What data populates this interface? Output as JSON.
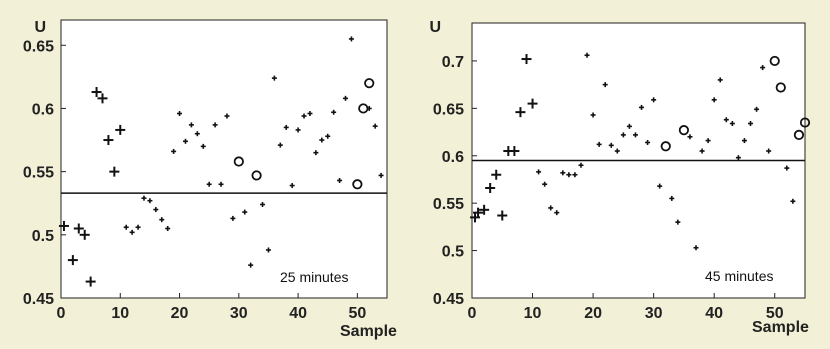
{
  "chart_data": [
    {
      "type": "scatter",
      "ylabel": "U",
      "xlabel": "Sample",
      "annotation": "25 minutes",
      "xlim": [
        0,
        55
      ],
      "ylim": [
        0.45,
        0.67
      ],
      "xticks": [
        0,
        10,
        20,
        30,
        40,
        50
      ],
      "xtick_labels": [
        "0",
        "10",
        "20",
        "30",
        "40",
        "50"
      ],
      "yticks": [
        0.45,
        0.5,
        0.55,
        0.6,
        0.65
      ],
      "ytick_labels": [
        "0.45",
        "0.5",
        "0.55",
        "0.6",
        "0.65"
      ],
      "reference_line": 0.533,
      "series": [
        {
          "marker": "plus",
          "points": [
            [
              0.5,
              0.507
            ],
            [
              2,
              0.48
            ],
            [
              3,
              0.505
            ],
            [
              4,
              0.5
            ],
            [
              5,
              0.463
            ],
            [
              6,
              0.613
            ],
            [
              7,
              0.608
            ],
            [
              8,
              0.575
            ],
            [
              9,
              0.55
            ],
            [
              10,
              0.583
            ]
          ]
        },
        {
          "marker": "dot",
          "points": [
            [
              11,
              0.506
            ],
            [
              12,
              0.502
            ],
            [
              13,
              0.506
            ],
            [
              14,
              0.529
            ],
            [
              15,
              0.527
            ],
            [
              16,
              0.52
            ],
            [
              17,
              0.512
            ],
            [
              18,
              0.505
            ],
            [
              19,
              0.566
            ],
            [
              20,
              0.596
            ],
            [
              21,
              0.574
            ],
            [
              22,
              0.587
            ],
            [
              23,
              0.58
            ],
            [
              24,
              0.57
            ],
            [
              25,
              0.54
            ],
            [
              26,
              0.587
            ],
            [
              27,
              0.54
            ],
            [
              28,
              0.594
            ],
            [
              29,
              0.513
            ],
            [
              31,
              0.518
            ],
            [
              32,
              0.476
            ],
            [
              34,
              0.524
            ],
            [
              35,
              0.488
            ],
            [
              36,
              0.624
            ],
            [
              37,
              0.571
            ],
            [
              38,
              0.585
            ],
            [
              39,
              0.539
            ],
            [
              40,
              0.583
            ],
            [
              41,
              0.594
            ],
            [
              42,
              0.596
            ],
            [
              43,
              0.565
            ],
            [
              44,
              0.575
            ],
            [
              45,
              0.578
            ],
            [
              46,
              0.597
            ],
            [
              47,
              0.543
            ],
            [
              48,
              0.608
            ],
            [
              49,
              0.655
            ],
            [
              52,
              0.6
            ],
            [
              53,
              0.586
            ],
            [
              54,
              0.547
            ]
          ]
        },
        {
          "marker": "circle",
          "points": [
            [
              30,
              0.558
            ],
            [
              33,
              0.547
            ],
            [
              50,
              0.54
            ],
            [
              51,
              0.6
            ],
            [
              52,
              0.62
            ]
          ]
        }
      ]
    },
    {
      "type": "scatter",
      "ylabel": "U",
      "xlabel": "Sample",
      "annotation": "45 minutes",
      "xlim": [
        0,
        55
      ],
      "ylim": [
        0.45,
        0.74
      ],
      "xticks": [
        0,
        10,
        20,
        30,
        40,
        50
      ],
      "xtick_labels": [
        "0",
        "10",
        "20",
        "30",
        "40",
        "50"
      ],
      "yticks": [
        0.45,
        0.5,
        0.55,
        0.6,
        0.65,
        0.7
      ],
      "ytick_labels": [
        "0.45",
        "0.5",
        "0.55",
        "0.6",
        "0.65",
        "0.7"
      ],
      "reference_line": 0.595,
      "series": [
        {
          "marker": "plus",
          "points": [
            [
              0.5,
              0.535
            ],
            [
              1,
              0.54
            ],
            [
              2,
              0.543
            ],
            [
              3,
              0.566
            ],
            [
              4,
              0.58
            ],
            [
              5,
              0.537
            ],
            [
              6,
              0.605
            ],
            [
              7,
              0.605
            ],
            [
              8,
              0.646
            ],
            [
              9,
              0.702
            ],
            [
              10,
              0.655
            ]
          ]
        },
        {
          "marker": "dot",
          "points": [
            [
              11,
              0.583
            ],
            [
              12,
              0.57
            ],
            [
              13,
              0.545
            ],
            [
              14,
              0.54
            ],
            [
              15,
              0.582
            ],
            [
              16,
              0.58
            ],
            [
              17,
              0.58
            ],
            [
              18,
              0.59
            ],
            [
              19,
              0.706
            ],
            [
              20,
              0.643
            ],
            [
              21,
              0.612
            ],
            [
              22,
              0.675
            ],
            [
              23,
              0.611
            ],
            [
              24,
              0.605
            ],
            [
              25,
              0.622
            ],
            [
              26,
              0.631
            ],
            [
              27,
              0.622
            ],
            [
              28,
              0.651
            ],
            [
              29,
              0.614
            ],
            [
              30,
              0.659
            ],
            [
              31,
              0.568
            ],
            [
              33,
              0.555
            ],
            [
              34,
              0.53
            ],
            [
              36,
              0.62
            ],
            [
              37,
              0.503
            ],
            [
              38,
              0.605
            ],
            [
              39,
              0.616
            ],
            [
              40,
              0.659
            ],
            [
              41,
              0.68
            ],
            [
              42,
              0.638
            ],
            [
              43,
              0.634
            ],
            [
              44,
              0.598
            ],
            [
              45,
              0.616
            ],
            [
              46,
              0.634
            ],
            [
              47,
              0.649
            ],
            [
              48,
              0.693
            ],
            [
              49,
              0.605
            ],
            [
              52,
              0.587
            ],
            [
              53,
              0.552
            ]
          ]
        },
        {
          "marker": "circle",
          "points": [
            [
              32,
              0.61
            ],
            [
              35,
              0.627
            ],
            [
              50,
              0.7
            ],
            [
              51,
              0.672
            ],
            [
              54,
              0.622
            ],
            [
              55,
              0.635
            ]
          ]
        }
      ]
    }
  ]
}
